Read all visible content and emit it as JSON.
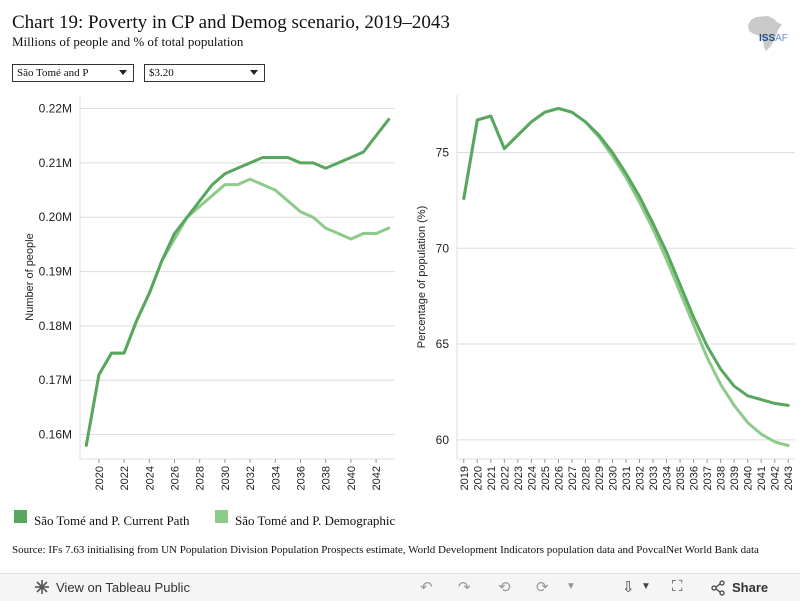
{
  "header": {
    "title": "Chart 19: Poverty in CP and Demog scenario, 2019–2043",
    "subtitle": "Millions of people and % of total population",
    "logo_text_main": "ISS",
    "logo_text_suffix": "AF"
  },
  "filters": {
    "country": "São Tomé and P",
    "poverty_line": "$3.20"
  },
  "colors": {
    "current_path": "#59a65f",
    "demographic": "#8ccb8a",
    "grid": "#dddddd",
    "axis": "#999999"
  },
  "chart_data": [
    {
      "type": "line",
      "ylabel": "Number of people",
      "ylim": [
        0.1555,
        0.2225
      ],
      "yticks": [
        0.16,
        0.17,
        0.18,
        0.19,
        0.2,
        0.21,
        0.22
      ],
      "ytick_labels": [
        "0.16M",
        "0.17M",
        "0.18M",
        "0.19M",
        "0.20M",
        "0.21M",
        "0.22M"
      ],
      "xticks": [
        2020,
        2022,
        2024,
        2026,
        2028,
        2030,
        2032,
        2034,
        2036,
        2038,
        2040,
        2042
      ],
      "x": [
        2019,
        2020,
        2021,
        2022,
        2023,
        2024,
        2025,
        2026,
        2027,
        2028,
        2029,
        2030,
        2031,
        2032,
        2033,
        2034,
        2035,
        2036,
        2037,
        2038,
        2039,
        2040,
        2041,
        2042,
        2043
      ],
      "series": [
        {
          "name": "São Tomé and P. Demographic",
          "color_key": "demographic",
          "values": [
            0.158,
            0.171,
            0.175,
            0.175,
            0.181,
            0.186,
            0.192,
            0.196,
            0.2,
            0.202,
            0.204,
            0.206,
            0.206,
            0.207,
            0.206,
            0.205,
            0.203,
            0.201,
            0.2,
            0.198,
            0.197,
            0.196,
            0.197,
            0.197,
            0.198
          ]
        },
        {
          "name": "São Tomé and P. Current Path",
          "color_key": "current_path",
          "values": [
            0.158,
            0.171,
            0.175,
            0.175,
            0.181,
            0.186,
            0.192,
            0.197,
            0.2,
            0.203,
            0.206,
            0.208,
            0.209,
            0.21,
            0.211,
            0.211,
            0.211,
            0.21,
            0.21,
            0.209,
            0.21,
            0.211,
            0.212,
            0.215,
            0.218
          ]
        }
      ]
    },
    {
      "type": "line",
      "ylabel": "Percentage of population (%)",
      "ylim": [
        59,
        78
      ],
      "yticks": [
        60,
        65,
        70,
        75
      ],
      "ytick_labels": [
        "60",
        "65",
        "70",
        "75"
      ],
      "xticks": [
        2019,
        2020,
        2021,
        2022,
        2023,
        2024,
        2025,
        2026,
        2027,
        2028,
        2029,
        2030,
        2031,
        2032,
        2033,
        2034,
        2035,
        2036,
        2037,
        2038,
        2039,
        2040,
        2041,
        2042,
        2043
      ],
      "x": [
        2019,
        2020,
        2021,
        2022,
        2023,
        2024,
        2025,
        2026,
        2027,
        2028,
        2029,
        2030,
        2031,
        2032,
        2033,
        2034,
        2035,
        2036,
        2037,
        2038,
        2039,
        2040,
        2041,
        2042,
        2043
      ],
      "series": [
        {
          "name": "São Tomé and P. Demographic",
          "color_key": "demographic",
          "values": [
            72.6,
            76.7,
            76.9,
            75.2,
            75.9,
            76.6,
            77.1,
            77.3,
            77.1,
            76.6,
            75.8,
            74.8,
            73.7,
            72.4,
            71.0,
            69.4,
            67.7,
            66.0,
            64.3,
            62.9,
            61.8,
            60.9,
            60.3,
            59.9,
            59.7
          ]
        },
        {
          "name": "São Tomé and P. Current Path",
          "color_key": "current_path",
          "values": [
            72.6,
            76.7,
            76.9,
            75.2,
            75.9,
            76.6,
            77.1,
            77.3,
            77.1,
            76.6,
            75.9,
            75.0,
            73.9,
            72.7,
            71.3,
            69.8,
            68.1,
            66.4,
            64.9,
            63.7,
            62.8,
            62.3,
            62.1,
            61.9,
            61.8
          ]
        }
      ]
    }
  ],
  "legend": [
    {
      "label": "São Tomé and P. Current Path",
      "color_key": "current_path"
    },
    {
      "label": "São Tomé and P. Demographic",
      "color_key": "demographic"
    }
  ],
  "source": "Source: IFs 7.63 initialising from UN Population Division Population Prospects estimate, World Development Indicators population data and PovcalNet World Bank data",
  "toolbar": {
    "view_label": "View on Tableau Public",
    "share_label": "Share"
  }
}
